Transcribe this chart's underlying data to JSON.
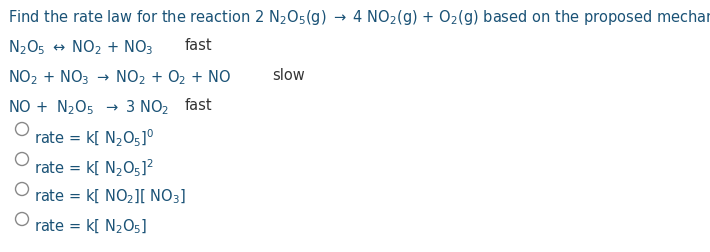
{
  "background_color": "#ffffff",
  "text_color": "#1a5276",
  "fast_slow_color": "#1a1a1a",
  "figsize": [
    7.1,
    2.52
  ],
  "dpi": 100,
  "title": "Find the rate law for the reaction 2 $\\mathregular{N_2O_5}$(g) $\\rightarrow$ 4 $\\mathregular{NO_2}$(g) + $\\mathregular{O_2}$(g) based on the proposed mechanism:",
  "line1_eq": "$\\mathregular{N_2O_5}$ $\\leftrightarrow$ $\\mathregular{NO_2}$ + $\\mathregular{NO_3}$",
  "line1_tag": "fast",
  "line2_eq": "$\\mathregular{NO_2}$ + $\\mathregular{NO_3}$ $\\rightarrow$ $\\mathregular{NO_2}$ + $\\mathregular{O_2}$ + NO",
  "line2_tag": "slow",
  "line3_eq": "NO +  $\\mathregular{N_2O_5}$  $\\rightarrow$ 3 $\\mathregular{NO_2}$",
  "line3_tag": "fast",
  "options": [
    "rate = k[ $\\mathregular{N_2O_5}$]$^0$",
    "rate = k[ $\\mathregular{N_2O_5}$]$^2$",
    "rate = k[ $\\mathregular{NO_2}$][ $\\mathregular{NO_3}$]",
    "rate = k[ $\\mathregular{N_2O_5}$]"
  ],
  "circle_color": "#888888",
  "fs": 10.5,
  "fs_small": 10.0
}
